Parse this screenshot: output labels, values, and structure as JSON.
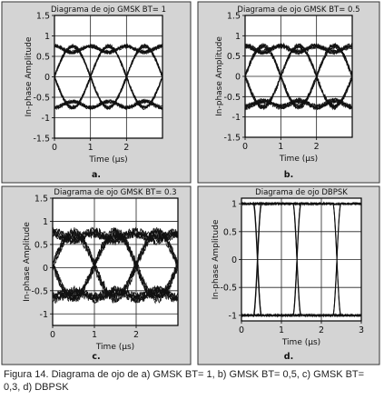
{
  "figure": {
    "caption": "Figura 14. Diagrama de ojo de a) GMSK BT= 1, b) GMSK BT= 0,5, c) GMSK BT= 0,3, d) DBPSK",
    "colors": {
      "panel_bg": "#d4d4d4",
      "plot_bg": "#ffffff",
      "trace": "#111111",
      "grid": "#222222",
      "border": "#333333"
    }
  },
  "chart_data": [
    {
      "type": "line",
      "title": "Diagrama de ojo GMSK BT= 1",
      "xlabel": "Time (µs)",
      "ylabel": "In-phase Amplitude",
      "panel_label": "a.",
      "xlim": [
        0,
        3
      ],
      "ylim": [
        -1.5,
        1.5
      ],
      "xticks": [
        0,
        1,
        2
      ],
      "yticks": [
        1.5,
        1,
        0.5,
        0,
        -0.5,
        -1,
        -1.5
      ],
      "ytick_labels": [
        "1.5",
        "1",
        "0.5",
        "0",
        "-0.5",
        "-1",
        "-1.5"
      ],
      "grid": true,
      "eye": {
        "modulation": "GMSK",
        "bt": 1,
        "symbol_period_us": 1,
        "crossing_times_us": [
          0.5,
          1.5,
          2.5
        ],
        "rail_levels": [
          0.75,
          -0.75
        ],
        "rail_spread": 0.06
      }
    },
    {
      "type": "line",
      "title": "Diagrama de ojo GMSK BT= 0.5",
      "xlabel": "Time (µs)",
      "ylabel": "In-phase Amplitude",
      "panel_label": "b.",
      "xlim": [
        0,
        3
      ],
      "ylim": [
        -1.5,
        1.5
      ],
      "xticks": [
        0,
        1,
        2
      ],
      "yticks": [
        1.5,
        1,
        0.5,
        0,
        -0.5,
        -1,
        -1.5
      ],
      "ytick_labels": [
        "1.5",
        "1",
        "0.5",
        "0",
        "-0.5",
        "-1",
        "-1.5"
      ],
      "grid": true,
      "eye": {
        "modulation": "GMSK",
        "bt": 0.5,
        "symbol_period_us": 1,
        "crossing_times_us": [
          0.5,
          1.5,
          2.5
        ],
        "rail_levels": [
          0.75,
          -0.75
        ],
        "rail_spread": 0.08
      }
    },
    {
      "type": "line",
      "title": "Diagrama de ojo GMSK BT= 0.3",
      "xlabel": "Time (µs)",
      "ylabel": "In-phase Amplitude",
      "panel_label": "c.",
      "xlim": [
        0,
        3
      ],
      "ylim": [
        -1.25,
        1.5
      ],
      "xticks": [
        0,
        1,
        2
      ],
      "yticks": [
        1.5,
        1,
        0.5,
        0,
        -0.5,
        -1
      ],
      "ytick_labels": [
        "1.5",
        "1",
        "0.5",
        "0",
        "-0.5",
        "-1"
      ],
      "grid": true,
      "eye": {
        "modulation": "GMSK",
        "bt": 0.3,
        "symbol_period_us": 1,
        "crossing_times_us": [
          0.5,
          1.5,
          2.5
        ],
        "rail_levels": [
          0.75,
          -0.65
        ],
        "rail_spread": 0.14
      }
    },
    {
      "type": "line",
      "title": "Diagrama de ojo DBPSK",
      "xlabel": "Time (µs)",
      "ylabel": "In-phase Amplitude",
      "panel_label": "d.",
      "xlim": [
        0,
        3
      ],
      "ylim": [
        -1.1,
        1.1
      ],
      "xticks": [
        0,
        1,
        2,
        3
      ],
      "yticks": [
        1,
        0.5,
        0,
        -0.5,
        -1
      ],
      "ytick_labels": [
        "1",
        "0.5",
        "0",
        "-0.5",
        "-1"
      ],
      "grid": true,
      "eye": {
        "modulation": "DBPSK",
        "symbol_period_us": 1,
        "transition_times_us": [
          0.4,
          1.4,
          2.4
        ],
        "transition_width_us": 0.1,
        "levels": [
          1,
          -1
        ]
      }
    }
  ]
}
